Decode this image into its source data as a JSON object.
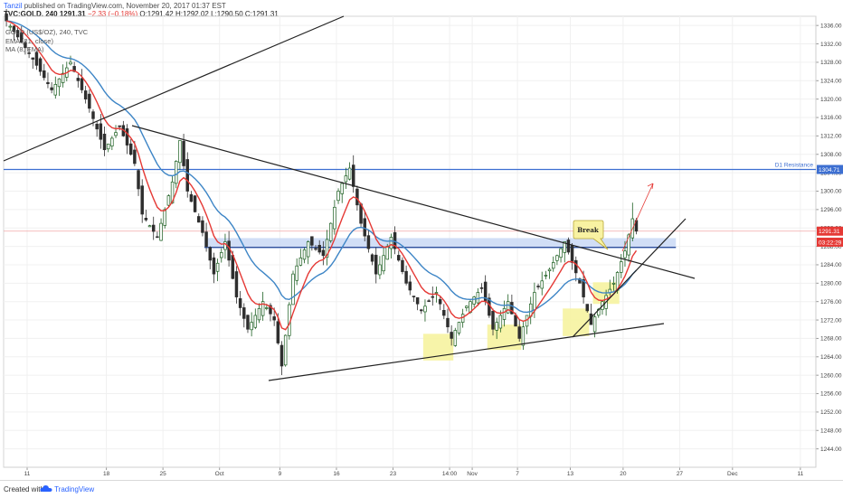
{
  "header": {
    "author": "Tanzil",
    "published": "published on TradingView.com, November 20, 2017 01:37 EST",
    "quote_symbol": "TVC:GOLD, 240",
    "quote_price": "1291.31",
    "quote_change": "−2.33 (−0.18%)",
    "quote_ohlc": "O:1291.42 H:1292.02 L:1290.50 C:1291.31"
  },
  "legend": {
    "line1": "GOLD (US$/OZ), 240, TVC",
    "line2": "EMA (21, close)",
    "line3": "MA (8, EMA)"
  },
  "annotations": {
    "resistance_label": "D1 Resistance",
    "break_label": "Break"
  },
  "footer": {
    "created_with": "Created with",
    "brand": "TradingView"
  },
  "colors": {
    "ema": "#3d85c6",
    "ma": "#e53935",
    "candle_up": "#1b5e20",
    "candle_down": "#2e2e2e",
    "resistance": "#3d6fd1",
    "zone": "#c9d8f4",
    "highlight": "#f6f3a0",
    "price_badge": "#e53935",
    "trendline": "#222222"
  },
  "chart_data": {
    "type": "candlestick",
    "title": "GOLD (US$/OZ), 240, TVC",
    "ylim": [
      1240,
      1338
    ],
    "y_ticks": [
      "1336.00",
      "1332.00",
      "1328.00",
      "1324.00",
      "1320.00",
      "1316.00",
      "1312.00",
      "1308.00",
      "1304.00",
      "1300.00",
      "1296.00",
      "1292.00",
      "1288.00",
      "1284.00",
      "1280.00",
      "1276.00",
      "1272.00",
      "1268.00",
      "1264.00",
      "1260.00",
      "1256.00",
      "1252.00",
      "1248.00",
      "1244.00"
    ],
    "x_ticks": [
      "11",
      "18",
      "25",
      "Oct",
      "9",
      "16",
      "23",
      "14:00",
      "Nov",
      "7",
      "13",
      "20",
      "27",
      "Dec",
      "11"
    ],
    "last_price": "1291.31",
    "countdown": "03:22:29",
    "resistance_price": "1304.71",
    "resistance_label": "D1 Resistance",
    "series": [
      {
        "name": "EMA (21, close)",
        "type": "line"
      },
      {
        "name": "MA (8, EMA)",
        "type": "line"
      }
    ],
    "anchors": [
      {
        "x": 0,
        "y": 1337
      },
      {
        "x": 6,
        "y": 1330
      },
      {
        "x": 12,
        "y": 1322
      },
      {
        "x": 17,
        "y": 1328
      },
      {
        "x": 22,
        "y": 1318
      },
      {
        "x": 26,
        "y": 1309
      },
      {
        "x": 30,
        "y": 1314
      },
      {
        "x": 34,
        "y": 1306
      },
      {
        "x": 36,
        "y": 1295
      },
      {
        "x": 40,
        "y": 1290
      },
      {
        "x": 44,
        "y": 1302
      },
      {
        "x": 46,
        "y": 1311
      },
      {
        "x": 48,
        "y": 1300
      },
      {
        "x": 52,
        "y": 1291
      },
      {
        "x": 55,
        "y": 1282
      },
      {
        "x": 58,
        "y": 1289
      },
      {
        "x": 61,
        "y": 1277
      },
      {
        "x": 64,
        "y": 1270
      },
      {
        "x": 68,
        "y": 1276
      },
      {
        "x": 71,
        "y": 1272
      },
      {
        "x": 73,
        "y": 1262
      },
      {
        "x": 76,
        "y": 1282
      },
      {
        "x": 80,
        "y": 1289
      },
      {
        "x": 84,
        "y": 1286
      },
      {
        "x": 88,
        "y": 1300
      },
      {
        "x": 91,
        "y": 1305
      },
      {
        "x": 94,
        "y": 1293
      },
      {
        "x": 98,
        "y": 1282
      },
      {
        "x": 102,
        "y": 1290
      },
      {
        "x": 106,
        "y": 1280
      },
      {
        "x": 110,
        "y": 1274
      },
      {
        "x": 114,
        "y": 1278
      },
      {
        "x": 118,
        "y": 1268
      },
      {
        "x": 122,
        "y": 1275
      },
      {
        "x": 126,
        "y": 1279
      },
      {
        "x": 129,
        "y": 1270
      },
      {
        "x": 133,
        "y": 1276
      },
      {
        "x": 136,
        "y": 1268
      },
      {
        "x": 140,
        "y": 1278
      },
      {
        "x": 144,
        "y": 1283
      },
      {
        "x": 148,
        "y": 1289
      },
      {
        "x": 152,
        "y": 1280
      },
      {
        "x": 155,
        "y": 1271
      },
      {
        "x": 158,
        "y": 1276
      },
      {
        "x": 161,
        "y": 1280
      },
      {
        "x": 164,
        "y": 1287
      },
      {
        "x": 166,
        "y": 1294
      },
      {
        "x": 167,
        "y": 1291.3
      }
    ],
    "annotations": [
      {
        "type": "hline",
        "price": 1304.71,
        "label": "D1 Resistance"
      },
      {
        "type": "zone",
        "from": 1287.5,
        "to": 1289.8
      },
      {
        "type": "callout",
        "label": "Break"
      }
    ]
  }
}
